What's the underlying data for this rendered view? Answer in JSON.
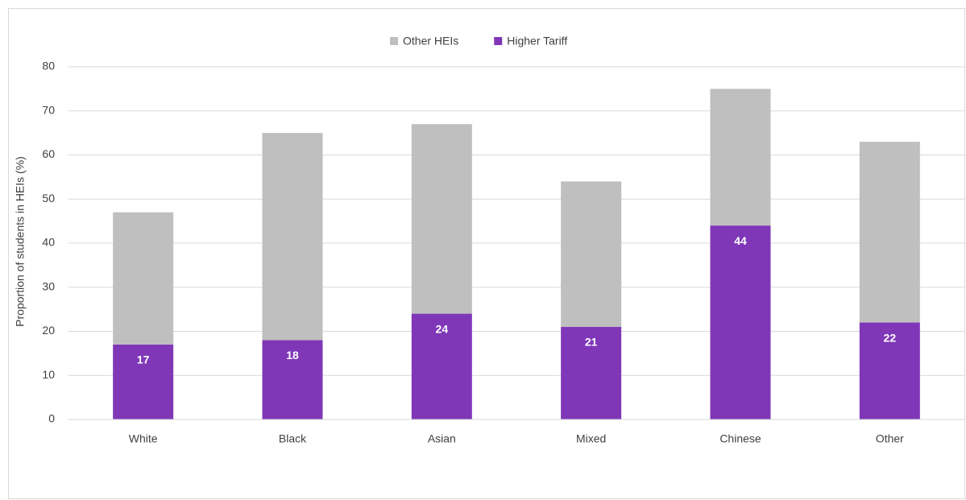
{
  "chart_data": {
    "type": "stacked_bar",
    "y_label": "Proportion of students in HEIs (%)",
    "categories": [
      "White",
      "Black",
      "Asian",
      "Mixed",
      "Chinese",
      "Other"
    ],
    "series": [
      {
        "name": "Other HEIs",
        "color": "#bfbfbf",
        "values": [
          30,
          47,
          43,
          33,
          31,
          41
        ],
        "data_labels": false
      },
      {
        "name": "Higher Tariff",
        "color": "#7f37b8",
        "values": [
          17,
          18,
          24,
          21,
          44,
          22
        ],
        "data_labels": true
      }
    ],
    "ylim": [
      0,
      80
    ],
    "yticks": [
      0,
      10,
      20,
      30,
      40,
      50,
      60,
      70,
      80
    ],
    "grid": true,
    "legend": "top"
  }
}
